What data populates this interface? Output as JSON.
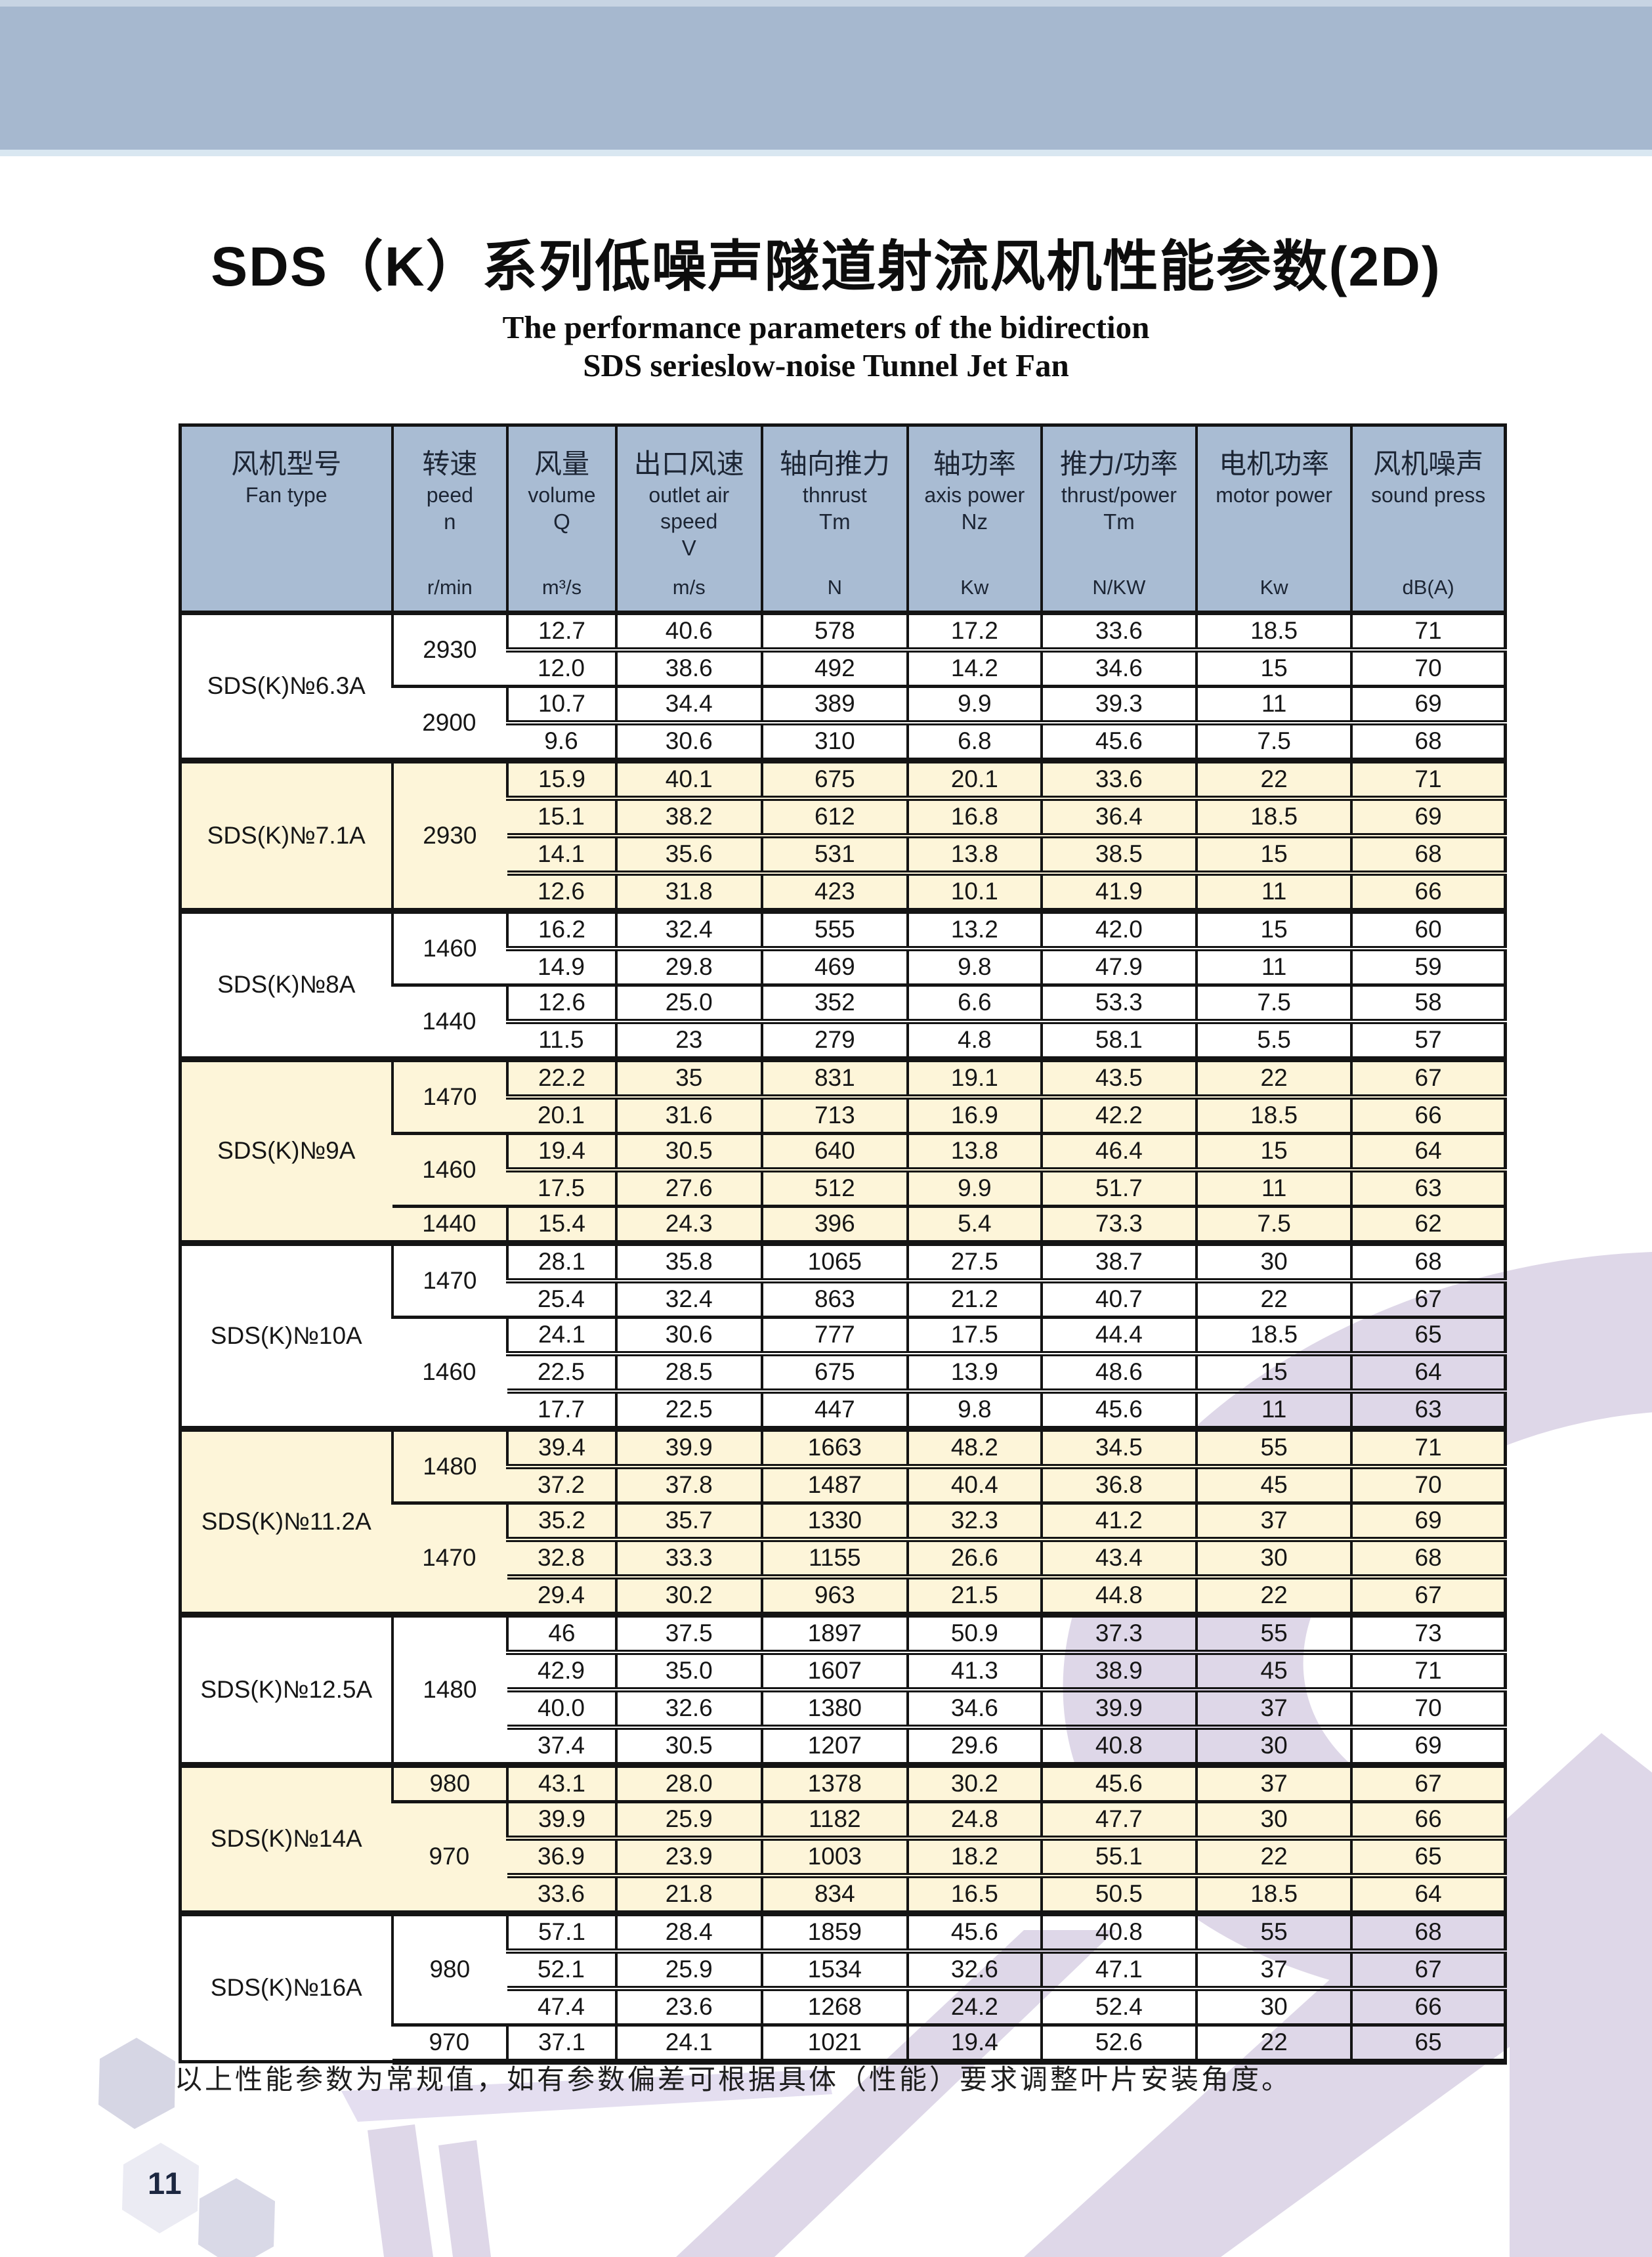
{
  "page": {
    "title_cn": "SDS（K）系列低噪声隧道射流风机性能参数(2D)",
    "subtitle_en_line1": "The performance parameters of the bidirection",
    "subtitle_en_line2": "SDS serieslow-noise Tunnel Jet Fan",
    "footnote": "以上性能参数为常规值，如有参数偏差可根据具体（性能）要求调整叶片安装角度。",
    "page_number": "11"
  },
  "colors": {
    "banner_blue": "#a6b8cf",
    "header_blue": "#a9bcd3",
    "row_cream": "#fdf5d9",
    "border_black": "#141414",
    "watermark_lavender": "#ded7e8",
    "hexagon_light": "#ebebf3",
    "hexagon_dark": "#d6d6e4",
    "text_navy": "#1c2534"
  },
  "table": {
    "col_widths_pct": [
      16,
      8.7,
      8.2,
      11,
      11,
      10.1,
      11.7,
      11.7,
      11.6
    ],
    "columns": [
      {
        "cn": "风机型号",
        "en": "Fan type",
        "sym": "",
        "unit": ""
      },
      {
        "cn": "转速",
        "en": "peed",
        "sym": "n",
        "unit": "r/min"
      },
      {
        "cn": "风量",
        "en": "volume",
        "sym": "Q",
        "unit": "m³/s"
      },
      {
        "cn": "出口风速",
        "en": "outlet air speed",
        "sym": "V",
        "unit": "m/s"
      },
      {
        "cn": "轴向推力",
        "en": "thnrust",
        "sym": "Tm",
        "unit": "N"
      },
      {
        "cn": "轴功率",
        "en": "axis power",
        "sym": "Nz",
        "unit": "Kw"
      },
      {
        "cn": "推力/功率",
        "en": "thrust/power",
        "sym": "Tm",
        "unit": "N/KW"
      },
      {
        "cn": "电机功率",
        "en": "motor power",
        "sym": "",
        "unit": "Kw"
      },
      {
        "cn": "风机噪声",
        "en": "sound press",
        "sym": "",
        "unit": "dB(A)"
      }
    ],
    "groups": [
      {
        "fan_type": "SDS(K)№6.3A",
        "tone": "white",
        "speed_blocks": [
          {
            "speed": "2930",
            "rows": [
              [
                "12.7",
                "40.6",
                "578",
                "17.2",
                "33.6",
                "18.5",
                "71"
              ],
              [
                "12.0",
                "38.6",
                "492",
                "14.2",
                "34.6",
                "15",
                "70"
              ]
            ]
          },
          {
            "speed": "2900",
            "rows": [
              [
                "10.7",
                "34.4",
                "389",
                "9.9",
                "39.3",
                "11",
                "69"
              ],
              [
                "9.6",
                "30.6",
                "310",
                "6.8",
                "45.6",
                "7.5",
                "68"
              ]
            ]
          }
        ]
      },
      {
        "fan_type": "SDS(K)№7.1A",
        "tone": "cream",
        "speed_blocks": [
          {
            "speed": "2930",
            "rows": [
              [
                "15.9",
                "40.1",
                "675",
                "20.1",
                "33.6",
                "22",
                "71"
              ],
              [
                "15.1",
                "38.2",
                "612",
                "16.8",
                "36.4",
                "18.5",
                "69"
              ],
              [
                "14.1",
                "35.6",
                "531",
                "13.8",
                "38.5",
                "15",
                "68"
              ],
              [
                "12.6",
                "31.8",
                "423",
                "10.1",
                "41.9",
                "11",
                "66"
              ]
            ]
          }
        ]
      },
      {
        "fan_type": "SDS(K)№8A",
        "tone": "white",
        "speed_blocks": [
          {
            "speed": "1460",
            "rows": [
              [
                "16.2",
                "32.4",
                "555",
                "13.2",
                "42.0",
                "15",
                "60"
              ],
              [
                "14.9",
                "29.8",
                "469",
                "9.8",
                "47.9",
                "11",
                "59"
              ]
            ]
          },
          {
            "speed": "1440",
            "rows": [
              [
                "12.6",
                "25.0",
                "352",
                "6.6",
                "53.3",
                "7.5",
                "58"
              ],
              [
                "11.5",
                "23",
                "279",
                "4.8",
                "58.1",
                "5.5",
                "57"
              ]
            ]
          }
        ]
      },
      {
        "fan_type": "SDS(K)№9A",
        "tone": "cream",
        "speed_blocks": [
          {
            "speed": "1470",
            "rows": [
              [
                "22.2",
                "35",
                "831",
                "19.1",
                "43.5",
                "22",
                "67"
              ],
              [
                "20.1",
                "31.6",
                "713",
                "16.9",
                "42.2",
                "18.5",
                "66"
              ]
            ]
          },
          {
            "speed": "1460",
            "rows": [
              [
                "19.4",
                "30.5",
                "640",
                "13.8",
                "46.4",
                "15",
                "64"
              ],
              [
                "17.5",
                "27.6",
                "512",
                "9.9",
                "51.7",
                "11",
                "63"
              ]
            ]
          },
          {
            "speed": "1440",
            "rows": [
              [
                "15.4",
                "24.3",
                "396",
                "5.4",
                "73.3",
                "7.5",
                "62"
              ]
            ]
          }
        ]
      },
      {
        "fan_type": "SDS(K)№10A",
        "tone": "white",
        "speed_blocks": [
          {
            "speed": "1470",
            "rows": [
              [
                "28.1",
                "35.8",
                "1065",
                "27.5",
                "38.7",
                "30",
                "68"
              ],
              [
                "25.4",
                "32.4",
                "863",
                "21.2",
                "40.7",
                "22",
                "67"
              ]
            ]
          },
          {
            "speed": "1460",
            "rows": [
              [
                "24.1",
                "30.6",
                "777",
                "17.5",
                "44.4",
                "18.5",
                "65"
              ],
              [
                "22.5",
                "28.5",
                "675",
                "13.9",
                "48.6",
                "15",
                "64"
              ],
              [
                "17.7",
                "22.5",
                "447",
                "9.8",
                "45.6",
                "11",
                "63"
              ]
            ]
          }
        ]
      },
      {
        "fan_type": "SDS(K)№11.2A",
        "tone": "cream",
        "speed_blocks": [
          {
            "speed": "1480",
            "rows": [
              [
                "39.4",
                "39.9",
                "1663",
                "48.2",
                "34.5",
                "55",
                "71"
              ],
              [
                "37.2",
                "37.8",
                "1487",
                "40.4",
                "36.8",
                "45",
                "70"
              ]
            ]
          },
          {
            "speed": "1470",
            "rows": [
              [
                "35.2",
                "35.7",
                "1330",
                "32.3",
                "41.2",
                "37",
                "69"
              ],
              [
                "32.8",
                "33.3",
                "1155",
                "26.6",
                "43.4",
                "30",
                "68"
              ],
              [
                "29.4",
                "30.2",
                "963",
                "21.5",
                "44.8",
                "22",
                "67"
              ]
            ]
          }
        ]
      },
      {
        "fan_type": "SDS(K)№12.5A",
        "tone": "white",
        "speed_blocks": [
          {
            "speed": "1480",
            "rows": [
              [
                "46",
                "37.5",
                "1897",
                "50.9",
                "37.3",
                "55",
                "73"
              ],
              [
                "42.9",
                "35.0",
                "1607",
                "41.3",
                "38.9",
                "45",
                "71"
              ],
              [
                "40.0",
                "32.6",
                "1380",
                "34.6",
                "39.9",
                "37",
                "70"
              ],
              [
                "37.4",
                "30.5",
                "1207",
                "29.6",
                "40.8",
                "30",
                "69"
              ]
            ]
          }
        ]
      },
      {
        "fan_type": "SDS(K)№14A",
        "tone": "cream",
        "speed_blocks": [
          {
            "speed": "980",
            "rows": [
              [
                "43.1",
                "28.0",
                "1378",
                "30.2",
                "45.6",
                "37",
                "67"
              ]
            ]
          },
          {
            "speed": "970",
            "rows": [
              [
                "39.9",
                "25.9",
                "1182",
                "24.8",
                "47.7",
                "30",
                "66"
              ],
              [
                "36.9",
                "23.9",
                "1003",
                "18.2",
                "55.1",
                "22",
                "65"
              ],
              [
                "33.6",
                "21.8",
                "834",
                "16.5",
                "50.5",
                "18.5",
                "64"
              ]
            ]
          }
        ]
      },
      {
        "fan_type": "SDS(K)№16A",
        "tone": "white",
        "speed_blocks": [
          {
            "speed": "980",
            "rows": [
              [
                "57.1",
                "28.4",
                "1859",
                "45.6",
                "40.8",
                "55",
                "68"
              ],
              [
                "52.1",
                "25.9",
                "1534",
                "32.6",
                "47.1",
                "37",
                "67"
              ],
              [
                "47.4",
                "23.6",
                "1268",
                "24.2",
                "52.4",
                "30",
                "66"
              ]
            ]
          },
          {
            "speed": "970",
            "rows": [
              [
                "37.1",
                "24.1",
                "1021",
                "19.4",
                "52.6",
                "22",
                "65"
              ]
            ]
          }
        ]
      }
    ]
  }
}
